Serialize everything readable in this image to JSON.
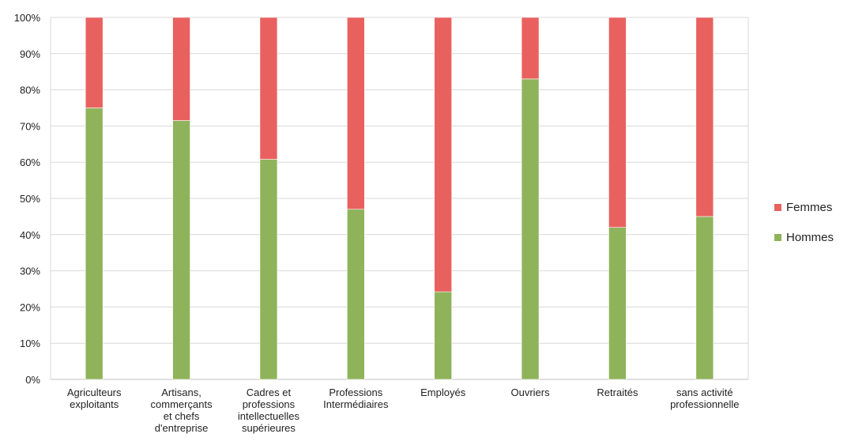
{
  "chart_data": {
    "type": "bar",
    "stacked": true,
    "percent": true,
    "categories": [
      [
        "Agriculteurs",
        "exploitants"
      ],
      [
        "Artisans,",
        "commerçants",
        "et chefs",
        "d'entreprise"
      ],
      [
        "Cadres et",
        "professions",
        "intellectuelles",
        "supérieures"
      ],
      [
        "Professions",
        "Intermédiaires"
      ],
      [
        "Employés"
      ],
      [
        "Ouvriers"
      ],
      [
        "Retraités"
      ],
      [
        "sans activité",
        "professionnelle"
      ]
    ],
    "series": [
      {
        "name": "Hommes",
        "color": "#8FB35A",
        "values": [
          75,
          71.5,
          60.8,
          47,
          24.2,
          83,
          42,
          45
        ]
      },
      {
        "name": "Femmes",
        "color": "#E8615F",
        "values": [
          25,
          28.5,
          39.2,
          53,
          75.8,
          17,
          58,
          55
        ]
      }
    ],
    "yticks": [
      "0%",
      "10%",
      "20%",
      "30%",
      "40%",
      "50%",
      "60%",
      "70%",
      "80%",
      "90%",
      "100%"
    ],
    "ylim": [
      0,
      100
    ],
    "grid": true,
    "legend_position": "right",
    "legend_order": [
      "Femmes",
      "Hommes"
    ],
    "gridline_color": "#D9D9D9",
    "axis_color": "#BFBFBF"
  }
}
